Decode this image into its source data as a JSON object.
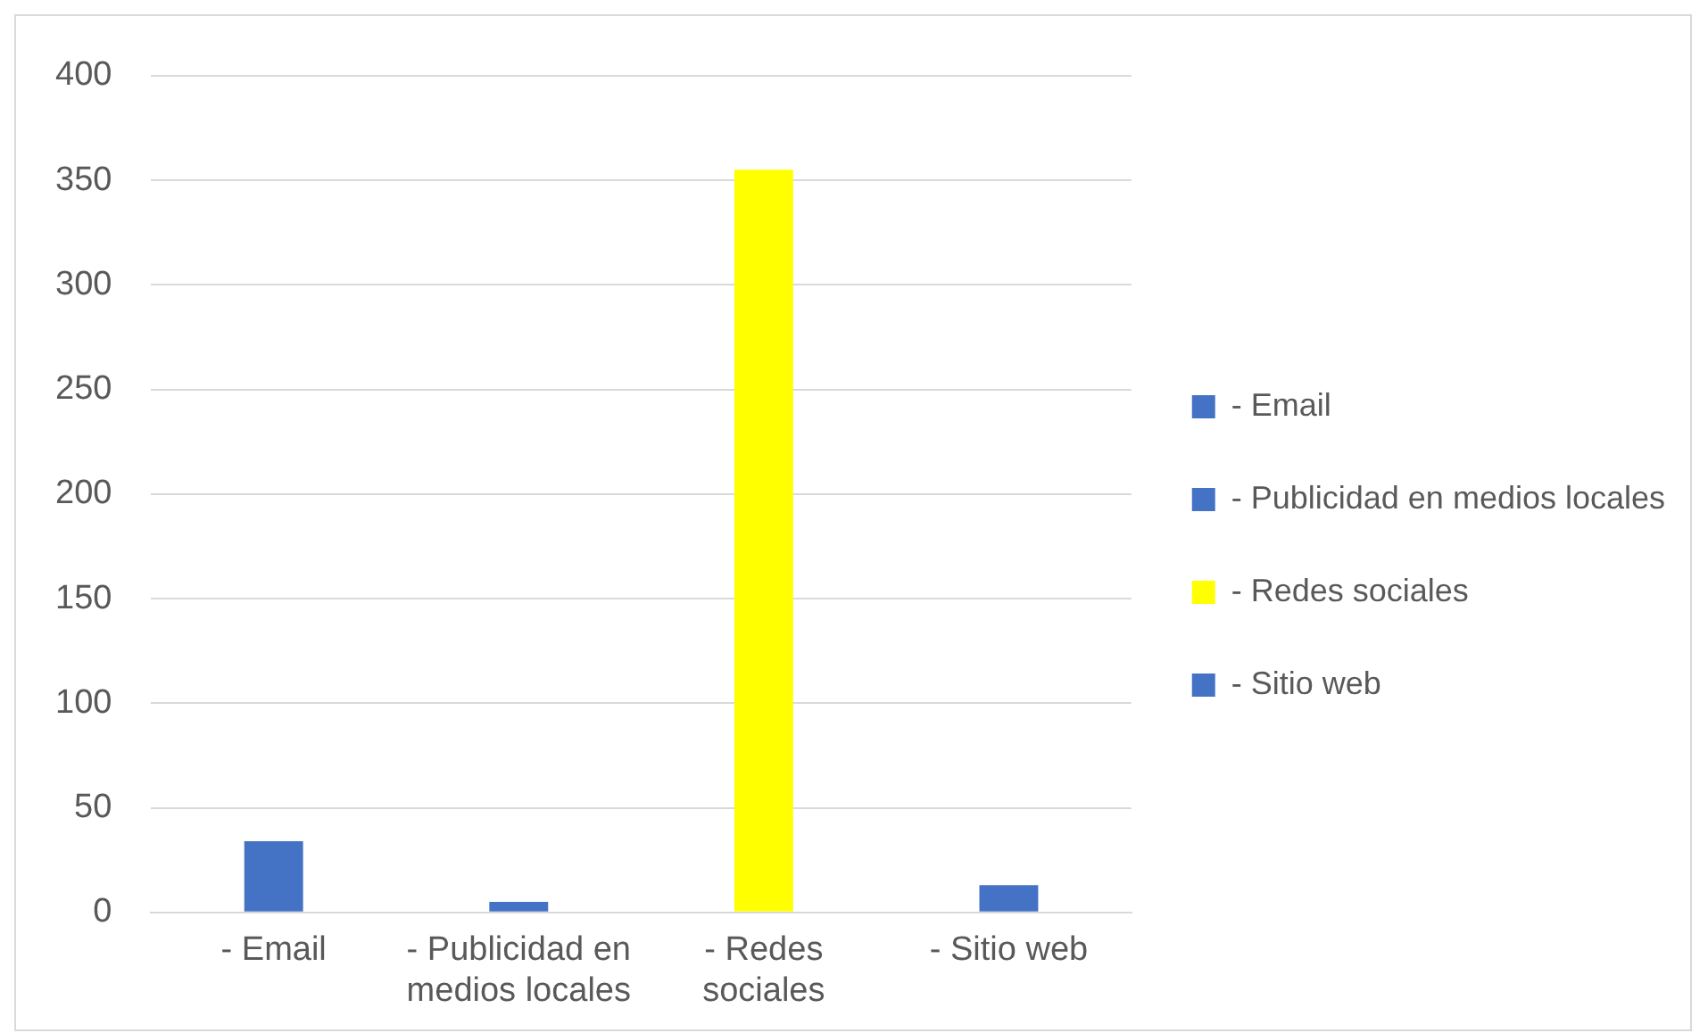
{
  "chart_data": {
    "type": "bar",
    "categories": [
      "- Email",
      "- Publicidad en medios locales",
      "- Redes sociales",
      "- Sitio web"
    ],
    "series": [
      {
        "name": "- Email",
        "color": "#4472c4",
        "values": [
          34,
          null,
          null,
          null
        ]
      },
      {
        "name": "- Publicidad en medios locales",
        "color": "#4472c4",
        "values": [
          null,
          5,
          null,
          null
        ]
      },
      {
        "name": "- Redes sociales",
        "color": "#ffff00",
        "values": [
          null,
          null,
          355,
          null
        ]
      },
      {
        "name": "- Sitio web",
        "color": "#4472c4",
        "values": [
          null,
          null,
          null,
          13
        ]
      }
    ],
    "stacked": true,
    "ylim": [
      0,
      400
    ],
    "yticks": [
      0,
      50,
      100,
      150,
      200,
      250,
      300,
      350,
      400
    ],
    "grid": "y",
    "legend": "right"
  }
}
